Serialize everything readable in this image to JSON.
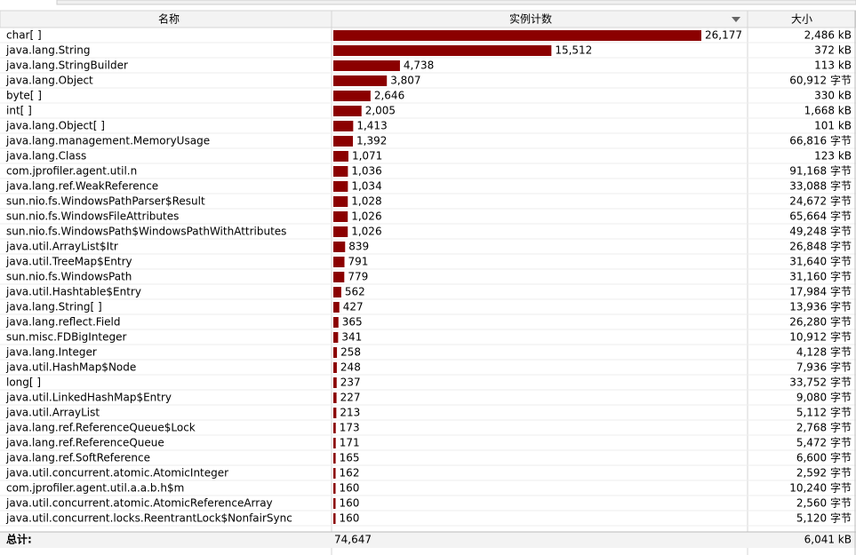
{
  "table": {
    "headers": [
      "名称",
      "实例计数",
      "大小"
    ],
    "rows": [
      {
        "name": "char[ ]",
        "count": 26177,
        "count_label": "26,177",
        "size": "2,486 kB"
      },
      {
        "name": "java.lang.String",
        "count": 15512,
        "count_label": "15,512",
        "size": "372 kB"
      },
      {
        "name": "java.lang.StringBuilder",
        "count": 4738,
        "count_label": "4,738",
        "size": "113 kB"
      },
      {
        "name": "java.lang.Object",
        "count": 3807,
        "count_label": "3,807",
        "size": "60,912 字节"
      },
      {
        "name": "byte[ ]",
        "count": 2646,
        "count_label": "2,646",
        "size": "330 kB"
      },
      {
        "name": "int[ ]",
        "count": 2005,
        "count_label": "2,005",
        "size": "1,668 kB"
      },
      {
        "name": "java.lang.Object[ ]",
        "count": 1413,
        "count_label": "1,413",
        "size": "101 kB"
      },
      {
        "name": "java.lang.management.MemoryUsage",
        "count": 1392,
        "count_label": "1,392",
        "size": "66,816 字节"
      },
      {
        "name": "java.lang.Class",
        "count": 1071,
        "count_label": "1,071",
        "size": "123 kB"
      },
      {
        "name": "com.jprofiler.agent.util.n",
        "count": 1036,
        "count_label": "1,036",
        "size": "91,168 字节"
      },
      {
        "name": "java.lang.ref.WeakReference",
        "count": 1034,
        "count_label": "1,034",
        "size": "33,088 字节"
      },
      {
        "name": "sun.nio.fs.WindowsPathParser$Result",
        "count": 1028,
        "count_label": "1,028",
        "size": "24,672 字节"
      },
      {
        "name": "sun.nio.fs.WindowsFileAttributes",
        "count": 1026,
        "count_label": "1,026",
        "size": "65,664 字节"
      },
      {
        "name": "sun.nio.fs.WindowsPath$WindowsPathWithAttributes",
        "count": 1026,
        "count_label": "1,026",
        "size": "49,248 字节"
      },
      {
        "name": "java.util.ArrayList$Itr",
        "count": 839,
        "count_label": "839",
        "size": "26,848 字节"
      },
      {
        "name": "java.util.TreeMap$Entry",
        "count": 791,
        "count_label": "791",
        "size": "31,640 字节"
      },
      {
        "name": "sun.nio.fs.WindowsPath",
        "count": 779,
        "count_label": "779",
        "size": "31,160 字节"
      },
      {
        "name": "java.util.Hashtable$Entry",
        "count": 562,
        "count_label": "562",
        "size": "17,984 字节"
      },
      {
        "name": "java.lang.String[ ]",
        "count": 427,
        "count_label": "427",
        "size": "13,936 字节"
      },
      {
        "name": "java.lang.reflect.Field",
        "count": 365,
        "count_label": "365",
        "size": "26,280 字节"
      },
      {
        "name": "sun.misc.FDBigInteger",
        "count": 341,
        "count_label": "341",
        "size": "10,912 字节"
      },
      {
        "name": "java.lang.Integer",
        "count": 258,
        "count_label": "258",
        "size": "4,128 字节"
      },
      {
        "name": "java.util.HashMap$Node",
        "count": 248,
        "count_label": "248",
        "size": "7,936 字节"
      },
      {
        "name": "long[ ]",
        "count": 237,
        "count_label": "237",
        "size": "33,752 字节"
      },
      {
        "name": "java.util.LinkedHashMap$Entry",
        "count": 227,
        "count_label": "227",
        "size": "9,080 字节"
      },
      {
        "name": "java.util.ArrayList",
        "count": 213,
        "count_label": "213",
        "size": "5,112 字节"
      },
      {
        "name": "java.lang.ref.ReferenceQueue$Lock",
        "count": 173,
        "count_label": "173",
        "size": "2,768 字节"
      },
      {
        "name": "java.lang.ref.ReferenceQueue",
        "count": 171,
        "count_label": "171",
        "size": "5,472 字节"
      },
      {
        "name": "java.lang.ref.SoftReference",
        "count": 165,
        "count_label": "165",
        "size": "6,600 字节"
      },
      {
        "name": "java.util.concurrent.atomic.AtomicInteger",
        "count": 162,
        "count_label": "162",
        "size": "2,592 字节"
      },
      {
        "name": "com.jprofiler.agent.util.a.a.b.h$m",
        "count": 160,
        "count_label": "160",
        "size": "10,240 字节"
      },
      {
        "name": "java.util.concurrent.atomic.AtomicReferenceArray",
        "count": 160,
        "count_label": "160",
        "size": "2,560 字节"
      },
      {
        "name": "java.util.concurrent.locks.ReentrantLock$NonfairSync",
        "count": 160,
        "count_label": "160",
        "size": "5,120 字节"
      }
    ],
    "total": {
      "label": "总计:",
      "count": "74,647",
      "size": "6,041 kB"
    }
  }
}
